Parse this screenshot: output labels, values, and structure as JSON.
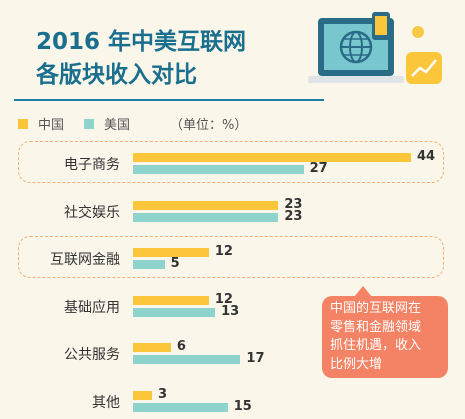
{
  "title": {
    "line1": "2016 年中美互联网",
    "line2": "各版块收入对比"
  },
  "legend": {
    "china": "中国",
    "usa": "美国",
    "unit": "（单位：%）"
  },
  "colors": {
    "china": "#fcc63b",
    "usa": "#8fd3cd",
    "title": "#1a6f8f",
    "callout": "#f48264",
    "highlight_border": "#f4b07a"
  },
  "callout": {
    "lines": [
      "中国的互联网在",
      "零售和金融领域",
      "抓住机遇，收入",
      "比例大增"
    ]
  },
  "illustration_icons": [
    "laptop-globe-icon",
    "phone-icon",
    "chart-card-icon"
  ],
  "chart_data": {
    "type": "bar",
    "orientation": "horizontal",
    "categories": [
      "电子商务",
      "社交娱乐",
      "互联网金融",
      "基础应用",
      "公共服务",
      "其他"
    ],
    "series": [
      {
        "name": "中国",
        "values": [
          44,
          23,
          12,
          12,
          6,
          3
        ]
      },
      {
        "name": "美国",
        "values": [
          27,
          23,
          5,
          13,
          17,
          15
        ]
      }
    ],
    "highlighted_categories": [
      "电子商务",
      "互联网金融"
    ],
    "xlim": [
      0,
      44
    ],
    "grid": false,
    "legend_position": "top-left"
  }
}
